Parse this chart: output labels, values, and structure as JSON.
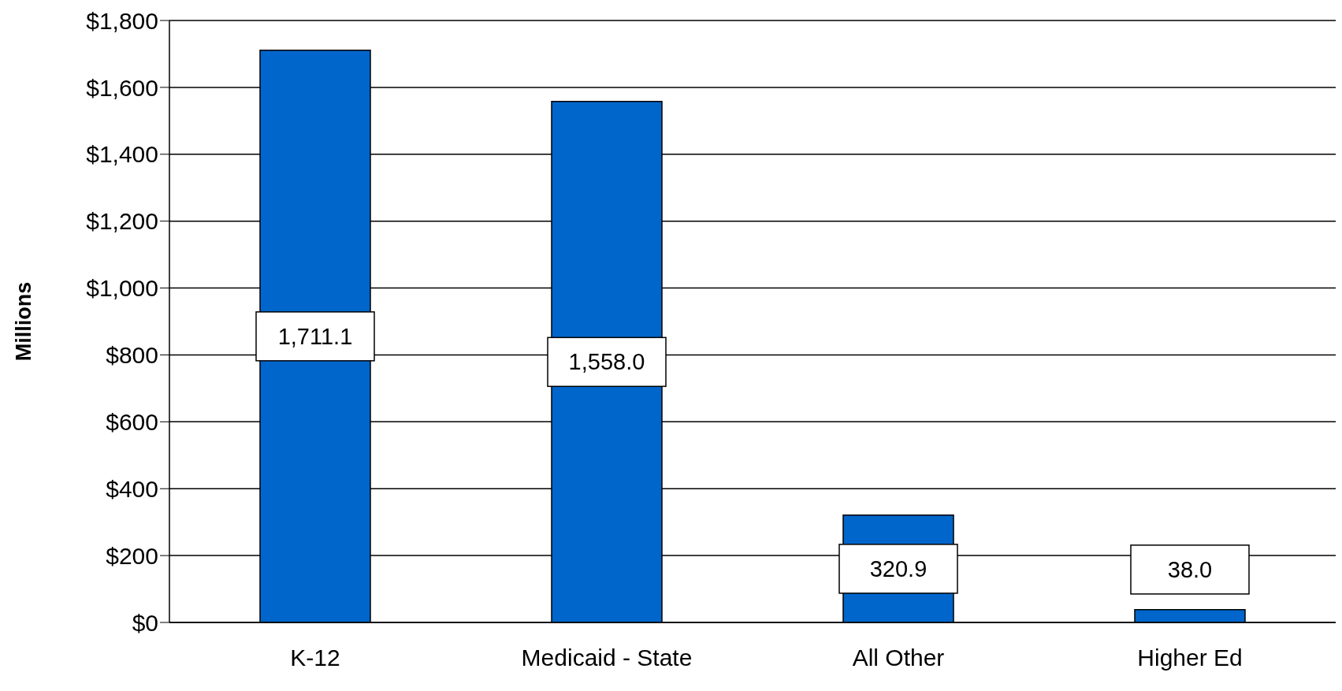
{
  "chart_data": {
    "type": "bar",
    "ylabel": "Millions",
    "categories": [
      "K-12",
      "Medicaid - State",
      "All Other",
      "Higher Ed"
    ],
    "values": [
      1711.1,
      1558.0,
      320.9,
      38.0
    ],
    "value_labels": [
      "1,711.1",
      "1,558.0",
      "320.9",
      "38.0"
    ],
    "color": "#0066cc",
    "ylim": [
      0,
      1800
    ],
    "yticks": [
      {
        "value": 0,
        "label": "$0"
      },
      {
        "value": 200,
        "label": "$200"
      },
      {
        "value": 400,
        "label": "$400"
      },
      {
        "value": 600,
        "label": "$600"
      },
      {
        "value": 800,
        "label": "$800"
      },
      {
        "value": 1000,
        "label": "$1,000"
      },
      {
        "value": 1200,
        "label": "$1,200"
      },
      {
        "value": 1400,
        "label": "$1,400"
      },
      {
        "value": 1600,
        "label": "$1,600"
      },
      {
        "value": 1800,
        "label": "$1,800"
      }
    ],
    "grid": "y",
    "legend": false
  }
}
